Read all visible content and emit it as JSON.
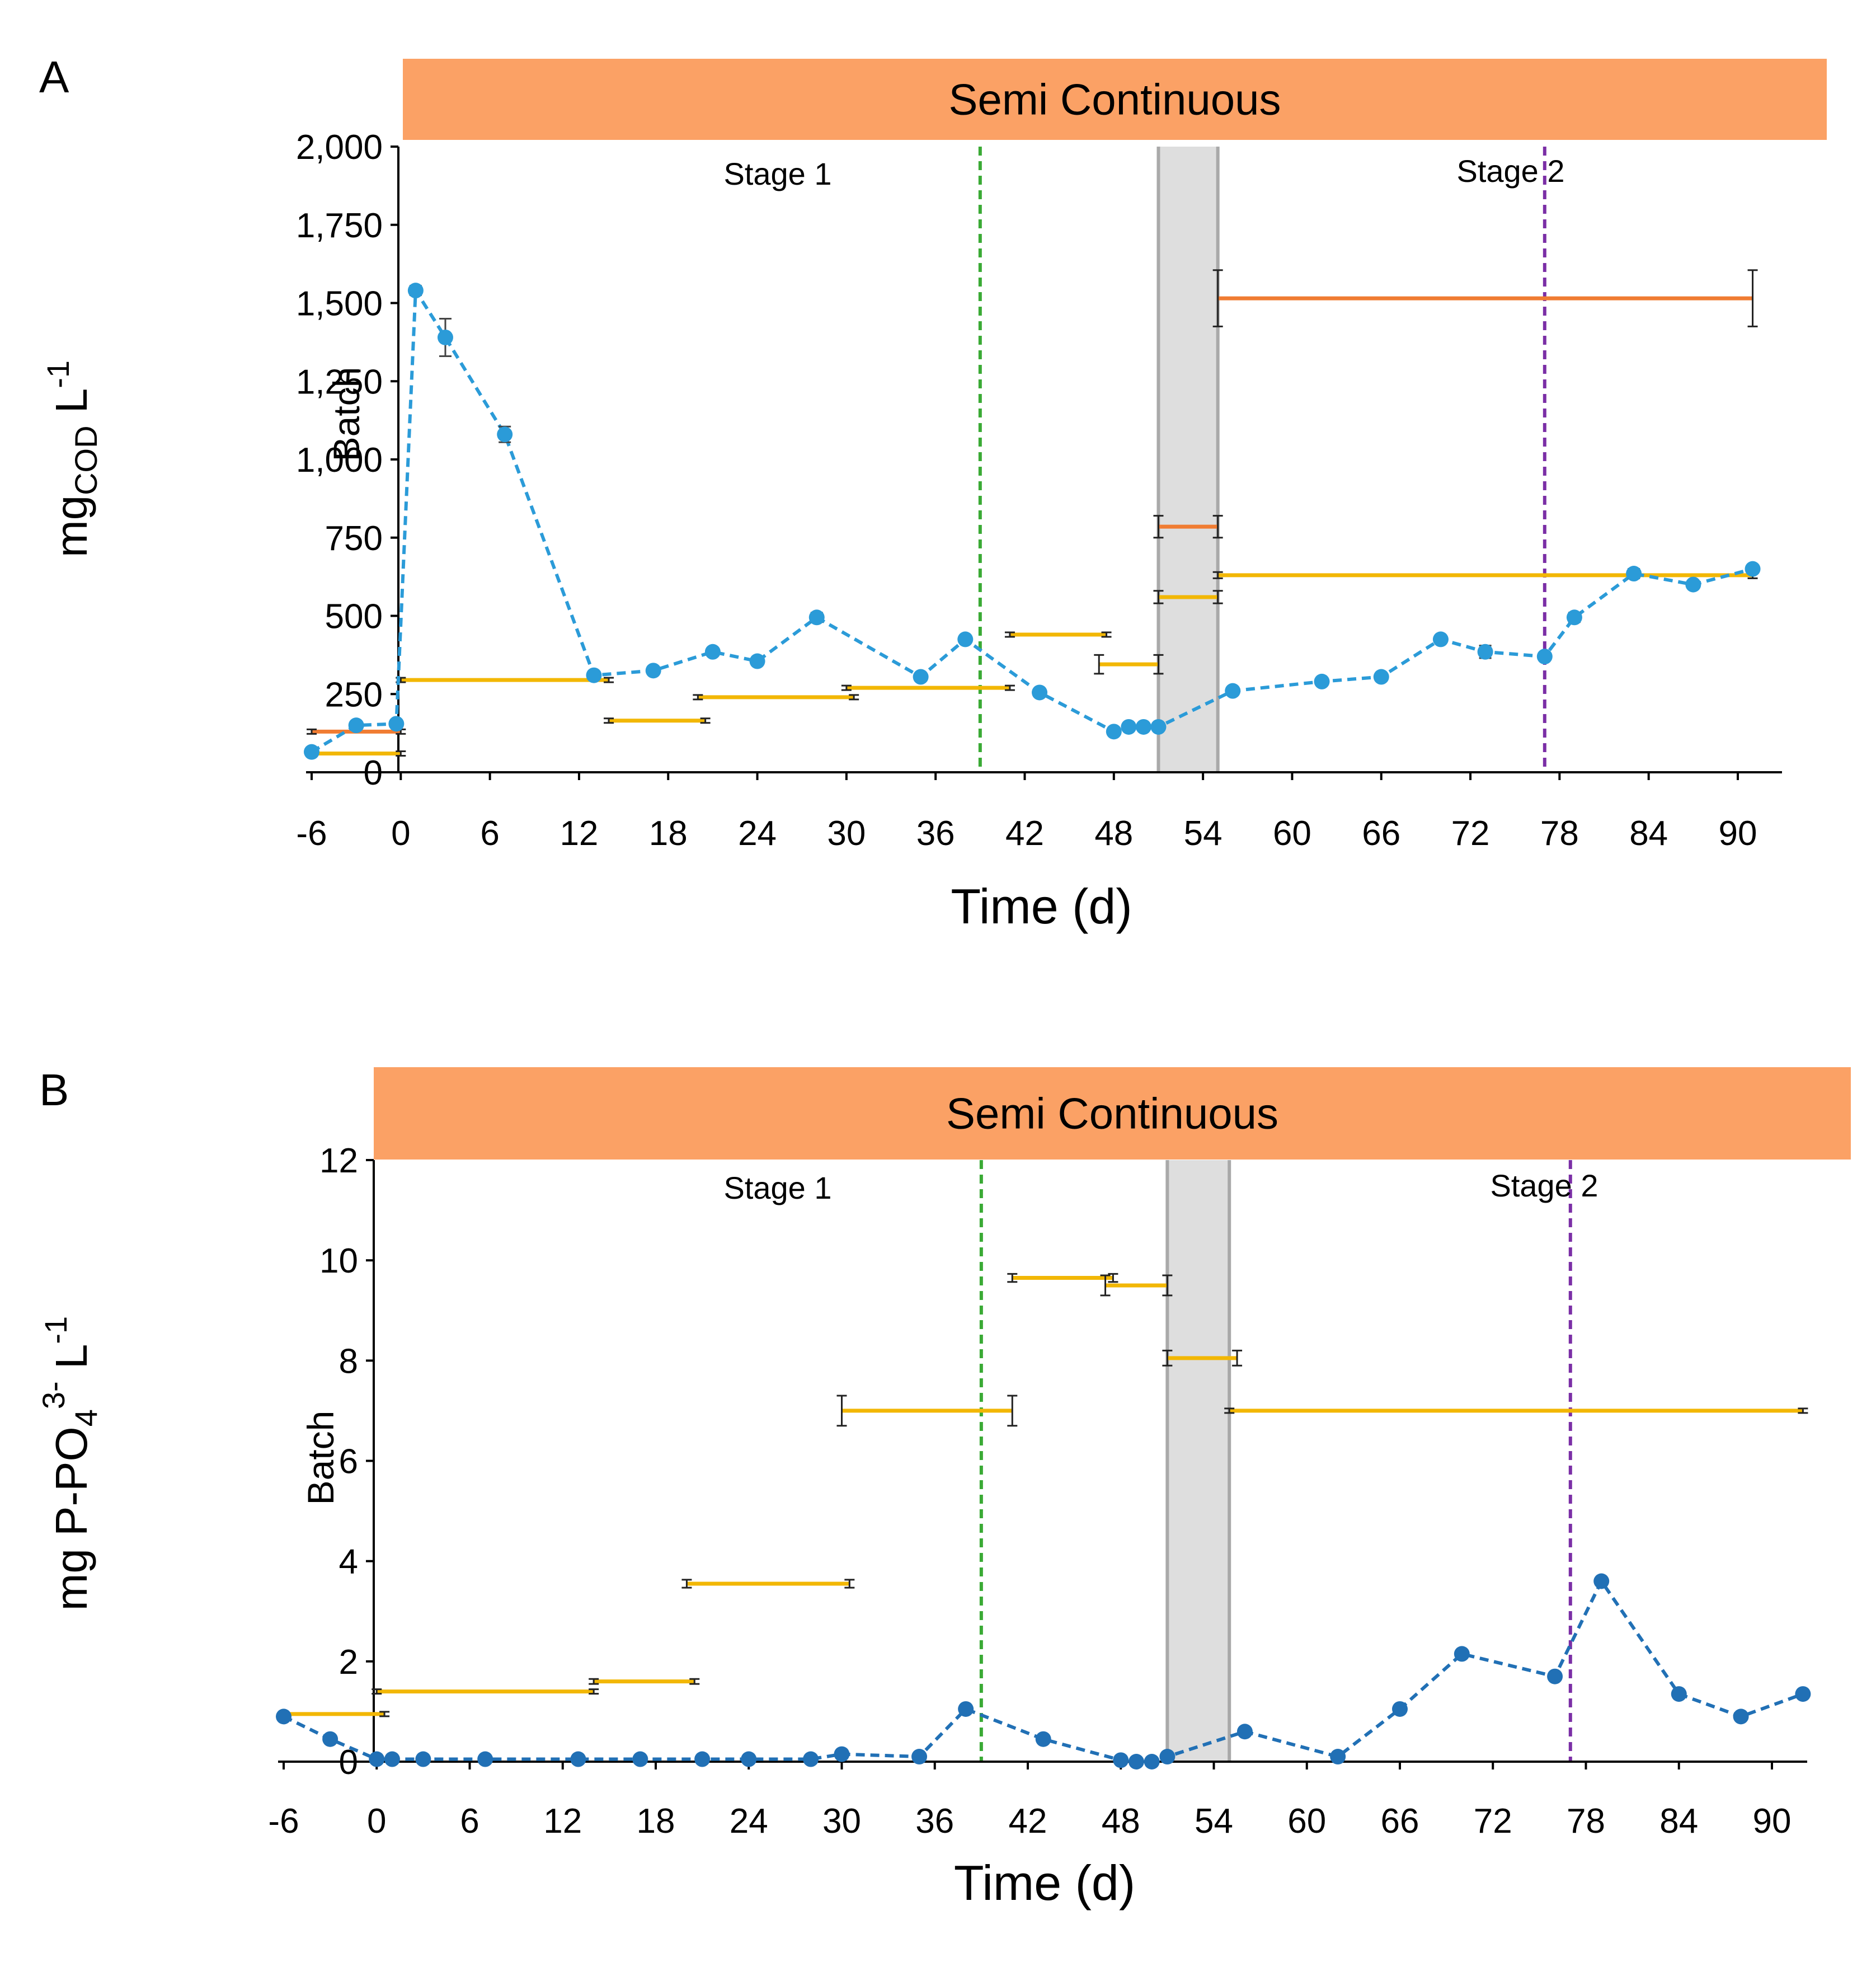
{
  "chart_data": [
    {
      "type": "line",
      "panel": "A",
      "banner": "Semi Continuous",
      "xlabel": "Time (d)",
      "ylabel": {
        "prefix": "mg",
        "sub": "COD",
        "suffix": " L",
        "sup": "-1"
      },
      "batch_label": "Batch",
      "stage_labels": [
        "Stage 1",
        "Stage 2"
      ],
      "xlim": [
        -7,
        93
      ],
      "ylim": [
        0,
        2000
      ],
      "xticks": [
        -6,
        0,
        6,
        12,
        18,
        24,
        30,
        36,
        42,
        48,
        54,
        60,
        66,
        72,
        78,
        84,
        90
      ],
      "yticks": [
        0,
        250,
        500,
        750,
        1000,
        1250,
        1500,
        1750,
        2000
      ],
      "ytick_labels": [
        "0",
        "250",
        "500",
        "750",
        "1,000",
        "1,250",
        "1,500",
        "1,750",
        "2,000"
      ],
      "shaded_region": [
        51,
        55
      ],
      "vlines": [
        {
          "x": 39,
          "color": "#3aaa35"
        },
        {
          "x": 77,
          "color": "#7b2fa6"
        }
      ],
      "series": [
        {
          "name": "measured",
          "style": "dashed-markers",
          "color": "#2b9bd8",
          "x": [
            -6,
            -3,
            -0.3,
            1,
            3,
            7,
            13,
            17,
            21,
            24,
            28,
            35,
            38,
            43,
            48,
            49,
            50,
            51,
            56,
            62,
            66,
            70,
            73,
            77,
            79,
            83,
            87,
            91
          ],
          "y": [
            65,
            150,
            155,
            1540,
            1390,
            1080,
            310,
            325,
            385,
            355,
            495,
            305,
            425,
            255,
            130,
            145,
            145,
            145,
            260,
            290,
            305,
            425,
            385,
            370,
            495,
            635,
            600,
            650
          ],
          "err": [
            0,
            0,
            0,
            15,
            60,
            25,
            0,
            0,
            0,
            0,
            15,
            0,
            0,
            0,
            0,
            0,
            0,
            0,
            0,
            0,
            0,
            0,
            20,
            0,
            15,
            15,
            0,
            0
          ]
        },
        {
          "name": "yellow",
          "style": "horizontal-segments",
          "color": "#f2b705",
          "segments": [
            {
              "x0": -6,
              "x1": 0,
              "y": 60,
              "err": 0
            },
            {
              "x0": 0,
              "x1": 14,
              "y": 295,
              "err": 0
            },
            {
              "x0": 14,
              "x1": 20.5,
              "y": 165,
              "err": 0
            },
            {
              "x0": 20,
              "x1": 30.5,
              "y": 240,
              "err": 0
            },
            {
              "x0": 30,
              "x1": 41,
              "y": 270,
              "err": 0
            },
            {
              "x0": 41,
              "x1": 47.5,
              "y": 440,
              "err": 0
            },
            {
              "x0": 47,
              "x1": 51,
              "y": 345,
              "err": 30
            },
            {
              "x0": 51,
              "x1": 55,
              "y": 560,
              "err": 20
            },
            {
              "x0": 55,
              "x1": 91,
              "y": 630,
              "err": 10
            }
          ]
        },
        {
          "name": "orange",
          "style": "horizontal-segments",
          "color": "#f07c32",
          "segments": [
            {
              "x0": -6,
              "x1": 0,
              "y": 130,
              "err": 0
            },
            {
              "x0": 51,
              "x1": 55,
              "y": 785,
              "err": 35
            },
            {
              "x0": 55,
              "x1": 91,
              "y": 1515,
              "err": 90
            }
          ]
        }
      ]
    },
    {
      "type": "line",
      "panel": "B",
      "banner": "Semi Continuous",
      "xlabel": "Time (d)",
      "ylabel": {
        "prefix": "mg P-PO",
        "sub": "4",
        "sup": "3-",
        "suffix": "  L",
        "sup2": "-1"
      },
      "batch_label": "Batch",
      "stage_labels": [
        "Stage 1",
        "Stage 2"
      ],
      "xlim": [
        -6,
        92
      ],
      "ylim": [
        0,
        12
      ],
      "xticks": [
        -6,
        0,
        6,
        12,
        18,
        24,
        30,
        36,
        42,
        48,
        54,
        60,
        66,
        72,
        78,
        84,
        90
      ],
      "yticks": [
        0,
        2,
        4,
        6,
        8,
        10,
        12
      ],
      "ytick_labels": [
        "0",
        "2",
        "4",
        "6",
        "8",
        "10",
        "12"
      ],
      "shaded_region": [
        51,
        55
      ],
      "vlines": [
        {
          "x": 39,
          "color": "#3aaa35"
        },
        {
          "x": 77,
          "color": "#7b2fa6"
        }
      ],
      "series": [
        {
          "name": "measured",
          "style": "dashed-markers",
          "color": "#2170b5",
          "x": [
            -6,
            -3,
            0,
            1,
            3,
            7,
            13,
            17,
            21,
            24,
            28,
            30,
            35,
            38,
            43,
            48,
            49,
            50,
            51,
            56,
            62,
            66,
            70,
            76,
            79,
            84,
            88,
            92
          ],
          "y": [
            0.9,
            0.45,
            0.05,
            0.05,
            0.05,
            0.05,
            0.05,
            0.05,
            0.05,
            0.05,
            0.05,
            0.15,
            0.1,
            1.05,
            0.45,
            0.03,
            0,
            0,
            0.1,
            0.6,
            0.1,
            1.05,
            2.15,
            1.7,
            3.6,
            1.35,
            0.9,
            1.35
          ],
          "err": []
        },
        {
          "name": "yellow",
          "style": "horizontal-segments",
          "color": "#f2b705",
          "segments": [
            {
              "x0": -6,
              "x1": 0.5,
              "y": 0.95,
              "err": 0
            },
            {
              "x0": 0,
              "x1": 14,
              "y": 1.4,
              "err": 0
            },
            {
              "x0": 14,
              "x1": 20.5,
              "y": 1.6,
              "err": 0.05
            },
            {
              "x0": 20,
              "x1": 30.5,
              "y": 3.55,
              "err": 0.08
            },
            {
              "x0": 30,
              "x1": 41,
              "y": 7,
              "err": 0.3
            },
            {
              "x0": 41,
              "x1": 47.5,
              "y": 9.65,
              "err": 0.08
            },
            {
              "x0": 47,
              "x1": 51,
              "y": 9.5,
              "err": 0.2
            },
            {
              "x0": 51,
              "x1": 55.5,
              "y": 8.05,
              "err": 0.15
            },
            {
              "x0": 55,
              "x1": 92,
              "y": 7,
              "err": 0
            }
          ]
        }
      ]
    }
  ]
}
